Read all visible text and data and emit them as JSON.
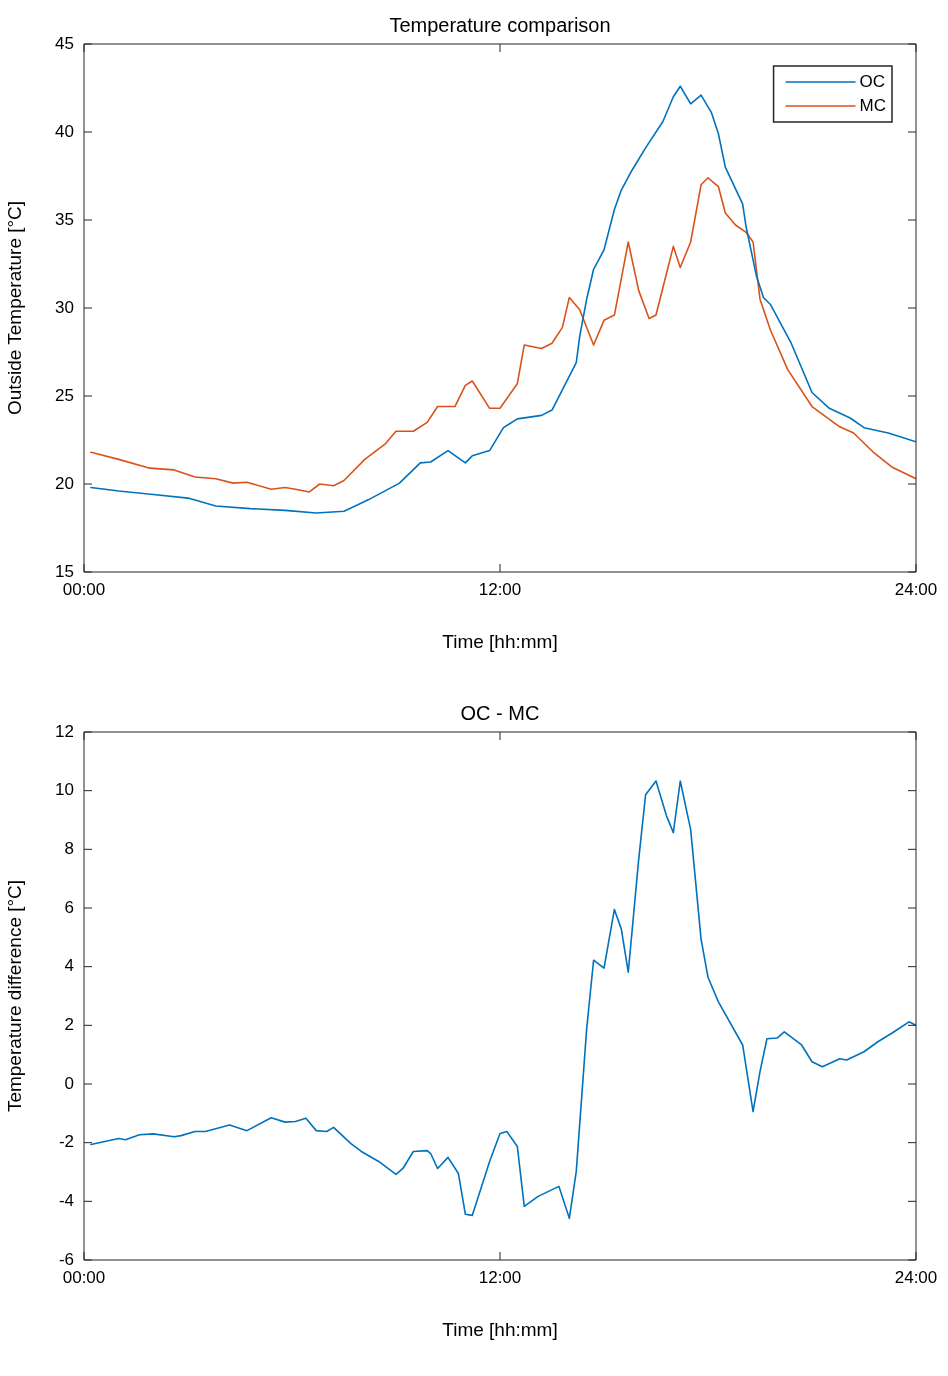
{
  "chart_data": [
    {
      "type": "line",
      "title": "Temperature comparison",
      "xlabel": "Time [hh:mm]",
      "ylabel": "Outside Temperature [°C]",
      "legend": "top right",
      "grid": false,
      "xlim": [
        0,
        24
      ],
      "xticks": [
        {
          "value": 0,
          "label": "00:00"
        },
        {
          "value": 12,
          "label": "12:00"
        },
        {
          "value": 24,
          "label": "24:00"
        }
      ],
      "ylim": [
        15,
        45
      ],
      "yticks": [
        15,
        20,
        25,
        30,
        35,
        40,
        45
      ],
      "series": [
        {
          "name": "OC",
          "color": "#0072bd",
          "x": [
            0.2,
            1,
            2,
            3,
            3.8,
            4.8,
            5.8,
            6.7,
            7.5,
            8.2,
            9.1,
            9.7,
            10.0,
            10.5,
            11.0,
            11.2,
            11.7,
            12.1,
            12.5,
            13.2,
            13.5,
            14.2,
            14.3,
            14.5,
            14.7,
            15.0,
            15.3,
            15.5,
            15.8,
            16.2,
            16.7,
            17.0,
            17.2,
            17.5,
            17.8,
            18.1,
            18.3,
            18.5,
            19.0,
            19.1,
            19.4,
            19.6,
            19.8,
            20.4,
            21.0,
            21.5,
            22.1,
            22.5,
            23.2,
            24.0
          ],
          "values": [
            19.8,
            19.6,
            19.4,
            19.2,
            18.75,
            18.6,
            18.5,
            18.35,
            18.45,
            19.1,
            20.05,
            21.2,
            21.25,
            21.9,
            21.2,
            21.6,
            21.9,
            23.2,
            23.7,
            23.9,
            24.2,
            26.9,
            28.4,
            30.5,
            32.2,
            33.3,
            35.6,
            36.7,
            37.8,
            39.1,
            40.6,
            42.0,
            42.6,
            41.6,
            42.1,
            41.1,
            39.9,
            38.0,
            35.9,
            34.6,
            31.8,
            30.6,
            30.2,
            28.0,
            25.2,
            24.3,
            23.75,
            23.2,
            22.9,
            22.4
          ]
        },
        {
          "name": "MC",
          "color": "#d95319",
          "x": [
            0.2,
            1.0,
            1.9,
            2.6,
            3.2,
            3.8,
            4.3,
            4.7,
            5.4,
            5.8,
            6.1,
            6.5,
            6.8,
            7.2,
            7.5,
            8.1,
            8.7,
            9.0,
            9.5,
            9.9,
            10.2,
            10.7,
            11.0,
            11.2,
            11.7,
            12.0,
            12.5,
            12.7,
            13.2,
            13.5,
            13.8,
            14.0,
            14.3,
            14.7,
            15.0,
            15.3,
            15.7,
            16.0,
            16.3,
            16.5,
            17.0,
            17.2,
            17.5,
            17.8,
            18.0,
            18.3,
            18.5,
            18.8,
            19.1,
            19.3,
            19.5,
            19.8,
            20.3,
            21.0,
            21.8,
            22.2,
            22.8,
            23.3,
            24.0
          ],
          "values": [
            21.8,
            21.4,
            20.9,
            20.8,
            20.4,
            20.3,
            20.05,
            20.1,
            19.7,
            19.8,
            19.7,
            19.55,
            20.0,
            19.9,
            20.2,
            21.4,
            22.3,
            23.0,
            23.0,
            23.5,
            24.4,
            24.4,
            25.6,
            25.85,
            24.3,
            24.3,
            25.7,
            27.9,
            27.7,
            28.0,
            28.9,
            30.6,
            29.9,
            27.9,
            29.3,
            29.6,
            33.75,
            31.0,
            29.4,
            29.6,
            33.5,
            32.3,
            33.75,
            37.0,
            37.4,
            36.9,
            35.4,
            34.7,
            34.3,
            33.75,
            30.5,
            28.75,
            26.5,
            24.4,
            23.25,
            22.9,
            21.75,
            20.97,
            20.3
          ]
        }
      ]
    },
    {
      "type": "line",
      "title": "OC - MC",
      "xlabel": "Time [hh:mm]",
      "ylabel": "Temperature difference [°C]",
      "grid": false,
      "xlim": [
        0,
        24
      ],
      "xticks": [
        {
          "value": 0,
          "label": "00:00"
        },
        {
          "value": 12,
          "label": "12:00"
        },
        {
          "value": 24,
          "label": "24:00"
        }
      ],
      "ylim": [
        -6,
        12
      ],
      "yticks": [
        -6,
        -4,
        -2,
        0,
        2,
        4,
        6,
        8,
        10,
        12
      ],
      "series": [
        {
          "color": "#0072bd",
          "x": [
            0.2,
            1.0,
            1.2,
            1.6,
            2.0,
            2.6,
            2.8,
            3.2,
            3.5,
            4.2,
            4.7,
            5.4,
            5.8,
            6.1,
            6.4,
            6.7,
            7.0,
            7.2,
            7.7,
            8.0,
            8.5,
            9.0,
            9.2,
            9.5,
            9.9,
            10.0,
            10.2,
            10.5,
            10.8,
            11.0,
            11.2,
            11.7,
            12.0,
            12.2,
            12.5,
            12.7,
            13.1,
            13.7,
            14.0,
            14.2,
            14.5,
            14.7,
            15.0,
            15.3,
            15.5,
            15.7,
            16.0,
            16.2,
            16.5,
            16.8,
            17.0,
            17.2,
            17.5,
            17.8,
            18.0,
            18.3,
            19.0,
            19.3,
            19.5,
            19.7,
            20.0,
            20.2,
            20.7,
            21.0,
            21.3,
            21.8,
            22.0,
            22.5,
            22.9,
            23.3,
            23.8,
            24.0
          ],
          "values": [
            -2.06,
            -1.86,
            -1.9,
            -1.73,
            -1.7,
            -1.8,
            -1.76,
            -1.62,
            -1.62,
            -1.4,
            -1.59,
            -1.15,
            -1.3,
            -1.28,
            -1.17,
            -1.59,
            -1.62,
            -1.48,
            -2.03,
            -2.3,
            -2.64,
            -3.08,
            -2.88,
            -2.3,
            -2.27,
            -2.37,
            -2.88,
            -2.5,
            -3.05,
            -4.44,
            -4.48,
            -2.64,
            -1.69,
            -1.62,
            -2.13,
            -4.17,
            -3.83,
            -3.49,
            -4.58,
            -2.98,
            1.88,
            4.22,
            3.95,
            5.95,
            5.28,
            3.81,
            7.65,
            9.86,
            10.33,
            9.15,
            8.57,
            10.33,
            8.67,
            4.94,
            3.64,
            2.8,
            1.33,
            -0.94,
            0.42,
            1.54,
            1.57,
            1.78,
            1.33,
            0.76,
            0.59,
            0.86,
            0.82,
            1.1,
            1.44,
            1.73,
            2.12,
            2.0
          ]
        }
      ]
    }
  ]
}
